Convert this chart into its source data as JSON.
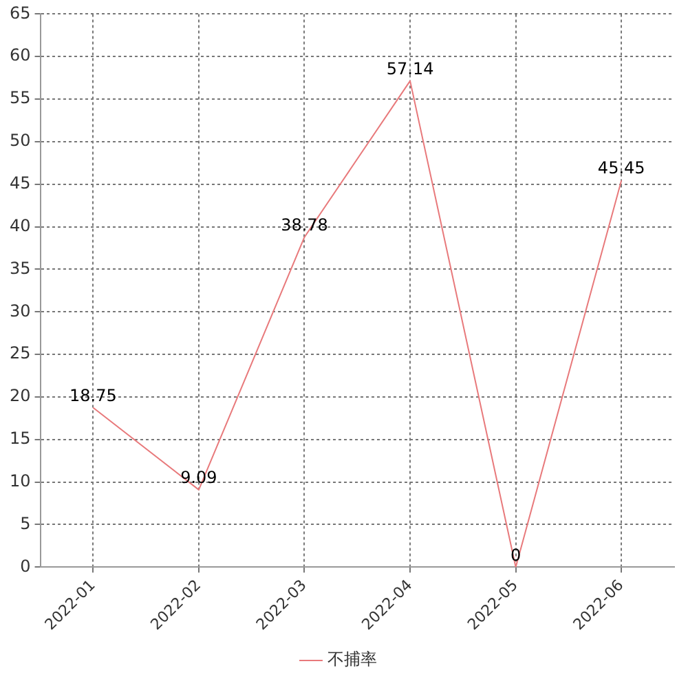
{
  "chart_data": {
    "type": "line",
    "categories": [
      "2022-01",
      "2022-02",
      "2022-03",
      "2022-04",
      "2022-05",
      "2022-06"
    ],
    "series": [
      {
        "name": "不捕率",
        "color": "#e8797b",
        "values": [
          18.75,
          9.09,
          38.78,
          57.14,
          0,
          45.45
        ]
      }
    ],
    "ylim": [
      0,
      65
    ],
    "yticks": [
      0,
      5,
      10,
      15,
      20,
      25,
      30,
      35,
      40,
      45,
      50,
      55,
      60,
      65
    ],
    "grid": true,
    "legend": "bottom",
    "marker": "none",
    "line_style": "solid",
    "data_labels": true
  }
}
